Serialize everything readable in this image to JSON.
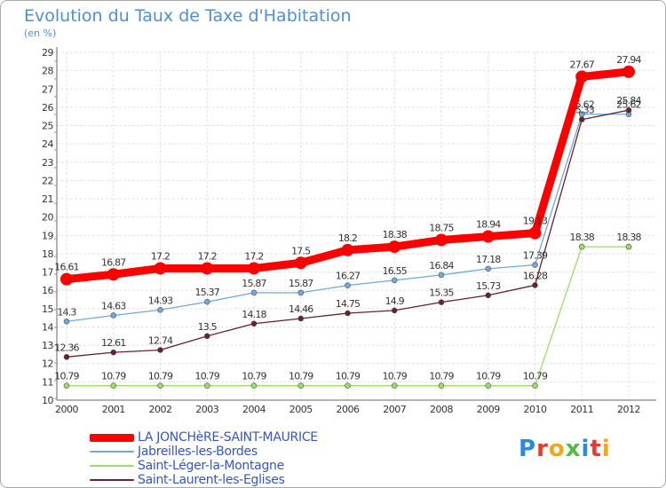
{
  "title": "Evolution du Taux de Taxe d'Habitation",
  "subtitle": "(en %)",
  "logo": {
    "text": "Proxiti",
    "letter_colors": [
      "#2a8ae0",
      "#e8382f",
      "#f2a71b",
      "#56b847",
      "#2a8ae0",
      "#e8382f",
      "#f2a71b"
    ]
  },
  "chart_data": {
    "type": "line",
    "x": [
      "2000",
      "2001",
      "2002",
      "2003",
      "2004",
      "2005",
      "2006",
      "2007",
      "2008",
      "2009",
      "2010",
      "2011",
      "2012"
    ],
    "ylim": [
      10,
      29
    ],
    "yticks": [
      "10",
      "11",
      "12",
      "13",
      "14",
      "15",
      "16",
      "17",
      "18",
      "19",
      "20",
      "21",
      "22",
      "23",
      "24",
      "25",
      "26",
      "27",
      "28",
      "29"
    ],
    "grid": true,
    "legend_position": "bottom-left",
    "series": [
      {
        "name": "LA JONCHèRE-SAINT-MAURICE",
        "color": "#ff0000",
        "values": [
          16.61,
          16.87,
          17.2,
          17.2,
          17.2,
          17.5,
          18.2,
          18.38,
          18.75,
          18.94,
          19.13,
          27.67,
          27.94
        ],
        "labels": [
          "16.61",
          "16.87",
          "17.2",
          "17.2",
          "17.2",
          "17.5",
          "18.2",
          "18.38",
          "18.75",
          "18.94",
          "19.13",
          "27.67",
          "27.94"
        ]
      },
      {
        "name": "Jabreilles-les-Bordes",
        "color": "#6fa8dc",
        "values": [
          14.3,
          14.63,
          14.93,
          15.37,
          15.87,
          15.87,
          16.27,
          16.55,
          16.84,
          17.18,
          17.39,
          25.62,
          25.62
        ],
        "labels": [
          "14.3",
          "14.63",
          "14.93",
          "15.37",
          "15.87",
          "15.87",
          "16.27",
          "16.55",
          "16.84",
          "17.18",
          "17.39",
          "25.62",
          "25.62"
        ]
      },
      {
        "name": "Saint-Léger-la-Montagne",
        "color": "#99dd66",
        "values": [
          10.79,
          10.79,
          10.79,
          10.79,
          10.79,
          10.79,
          10.79,
          10.79,
          10.79,
          10.79,
          10.79,
          18.38,
          18.38
        ],
        "labels": [
          "10.79",
          "10.79",
          "10.79",
          "10.79",
          "10.79",
          "10.79",
          "10.79",
          "10.79",
          "10.79",
          "10.79",
          "10.79",
          "18.38",
          "18.38"
        ]
      },
      {
        "name": "Saint-Laurent-les-Eglises",
        "color": "#6b1f2a",
        "values": [
          12.36,
          12.61,
          12.74,
          13.5,
          14.18,
          14.46,
          14.75,
          14.9,
          15.35,
          15.73,
          16.28,
          25.33,
          25.84
        ],
        "labels": [
          "12.36",
          "12.61",
          "12.74",
          "13.5",
          "14.18",
          "14.46",
          "14.75",
          "14.9",
          "15.35",
          "15.73",
          "16.28",
          "25.33",
          "25.84"
        ]
      }
    ]
  }
}
